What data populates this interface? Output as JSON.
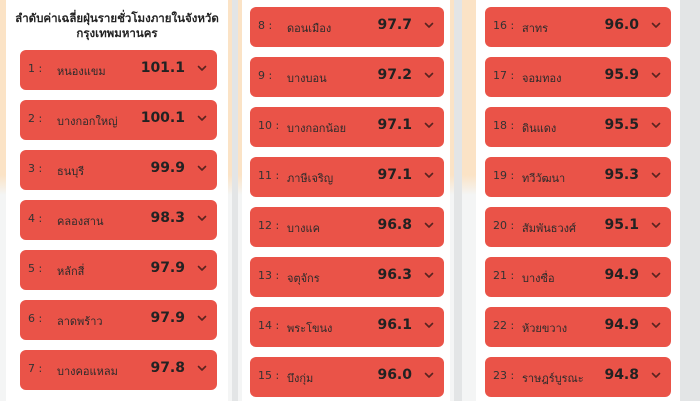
{
  "title": "ลำดับค่าเฉลี่ยฝุ่นรายชั่วโมงภายในจังหวัดกรุงเทพมหานคร",
  "columns": [
    {
      "items": [
        {
          "rank": "1 :",
          "name": "หนองแขม",
          "value": "101.1"
        },
        {
          "rank": "2 :",
          "name": "บางกอกใหญ่",
          "value": "100.1"
        },
        {
          "rank": "3 :",
          "name": "ธนบุรี",
          "value": "99.9"
        },
        {
          "rank": "4 :",
          "name": "คลองสาน",
          "value": "98.3"
        },
        {
          "rank": "5 :",
          "name": "หลักสี่",
          "value": "97.9"
        },
        {
          "rank": "6 :",
          "name": "ลาดพร้าว",
          "value": "97.9"
        },
        {
          "rank": "7 :",
          "name": "บางคอแหลม",
          "value": "97.8"
        }
      ]
    },
    {
      "items": [
        {
          "rank": "8 :",
          "name": "ดอนเมือง",
          "value": "97.7"
        },
        {
          "rank": "9 :",
          "name": "บางบอน",
          "value": "97.2"
        },
        {
          "rank": "10 :",
          "name": "บางกอกน้อย",
          "value": "97.1"
        },
        {
          "rank": "11 :",
          "name": "ภาษีเจริญ",
          "value": "97.1"
        },
        {
          "rank": "12 :",
          "name": "บางแค",
          "value": "96.8"
        },
        {
          "rank": "13 :",
          "name": "จตุจักร",
          "value": "96.3"
        },
        {
          "rank": "14 :",
          "name": "พระโขนง",
          "value": "96.1"
        },
        {
          "rank": "15 :",
          "name": "บึงกุ่ม",
          "value": "96.0"
        }
      ]
    },
    {
      "items": [
        {
          "rank": "16 :",
          "name": "สาทร",
          "value": "96.0"
        },
        {
          "rank": "17 :",
          "name": "จอมทอง",
          "value": "95.9"
        },
        {
          "rank": "18 :",
          "name": "ดินแดง",
          "value": "95.5"
        },
        {
          "rank": "19 :",
          "name": "ทวีวัฒนา",
          "value": "95.3"
        },
        {
          "rank": "20 :",
          "name": "สัมพันธวงศ์",
          "value": "95.1"
        },
        {
          "rank": "21 :",
          "name": "บางซื่อ",
          "value": "94.9"
        },
        {
          "rank": "22 :",
          "name": "ห้วยขวาง",
          "value": "94.9"
        },
        {
          "rank": "23 :",
          "name": "ราษฎร์บูรณะ",
          "value": "94.8"
        }
      ]
    }
  ],
  "colors": {
    "row": "#ea5348",
    "header_bg": "#fbe3c6",
    "panel_bg": "#f4f5f5"
  },
  "icons": {
    "expand": "chevron-down-icon"
  }
}
